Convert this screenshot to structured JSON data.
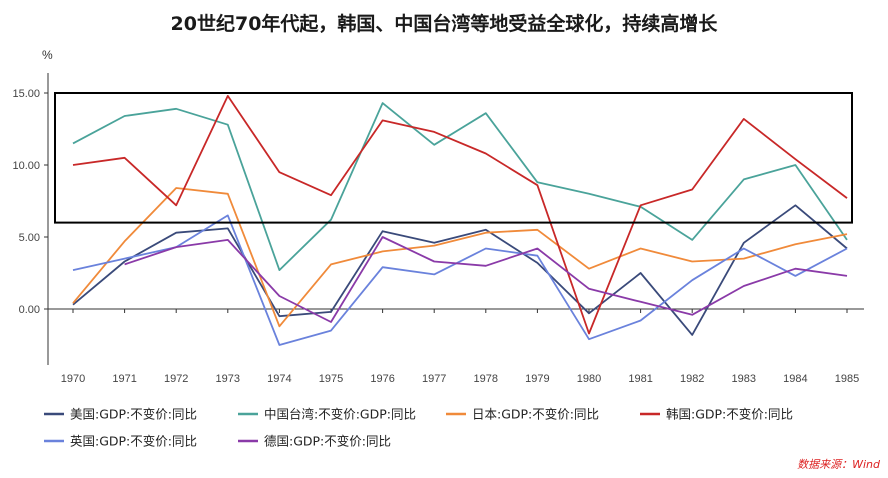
{
  "chart_data": {
    "type": "line",
    "title": "20世纪70年代起，韩国、中国台湾等地受益全球化，持续高增长",
    "ylabel": "%",
    "xlabel": "",
    "ylim": [
      -4,
      16
    ],
    "yticks": [
      "15.00",
      "10.00",
      "5.00",
      "0.00"
    ],
    "ytick_values": [
      15,
      10,
      5,
      0
    ],
    "categories": [
      "1970",
      "1971",
      "1972",
      "1973",
      "1974",
      "1975",
      "1976",
      "1977",
      "1978",
      "1979",
      "1980",
      "1981",
      "1982",
      "1983",
      "1984",
      "1985"
    ],
    "series": [
      {
        "name": "美国:GDP:不变价:同比",
        "color": "#3a4a7a",
        "values": [
          0.3,
          3.3,
          5.3,
          5.6,
          -0.5,
          -0.2,
          5.4,
          4.6,
          5.5,
          3.2,
          -0.3,
          2.5,
          -1.8,
          4.6,
          7.2,
          4.2
        ]
      },
      {
        "name": "中国台湾:不变价:GDP:同比",
        "color": "#4aa39a",
        "values": [
          11.5,
          13.4,
          13.9,
          12.8,
          2.7,
          6.2,
          14.3,
          11.4,
          13.6,
          8.8,
          8.0,
          7.1,
          4.8,
          9.0,
          10.0,
          4.8
        ]
      },
      {
        "name": "日本:GDP:不变价:同比",
        "color": "#f08a3a",
        "values": [
          0.4,
          4.7,
          8.4,
          8.0,
          -1.2,
          3.1,
          4.0,
          4.4,
          5.3,
          5.5,
          2.8,
          4.2,
          3.3,
          3.5,
          4.5,
          5.2
        ]
      },
      {
        "name": "韩国:GDP:不变价:同比",
        "color": "#c82828",
        "values": [
          10.0,
          10.5,
          7.2,
          14.8,
          9.5,
          7.9,
          13.1,
          12.3,
          10.8,
          8.6,
          -1.7,
          7.2,
          8.3,
          13.2,
          10.4,
          7.7
        ]
      },
      {
        "name": "英国:GDP:不变价:同比",
        "color": "#6a82dc",
        "values": [
          2.7,
          3.5,
          4.3,
          6.5,
          -2.5,
          -1.5,
          2.9,
          2.4,
          4.2,
          3.7,
          -2.1,
          -0.8,
          2.0,
          4.2,
          2.3,
          4.2
        ]
      },
      {
        "name": "德国:GDP:不变价:同比",
        "color": "#8a3aa8",
        "values": [
          null,
          3.1,
          4.3,
          4.8,
          0.9,
          -0.9,
          5.0,
          3.3,
          3.0,
          4.2,
          1.4,
          0.5,
          -0.4,
          1.6,
          2.8,
          2.3
        ]
      }
    ],
    "legend_position": "bottom",
    "grid": false,
    "annotation": "highlight box over 6–15% range"
  },
  "source": "数据来源：Wind"
}
